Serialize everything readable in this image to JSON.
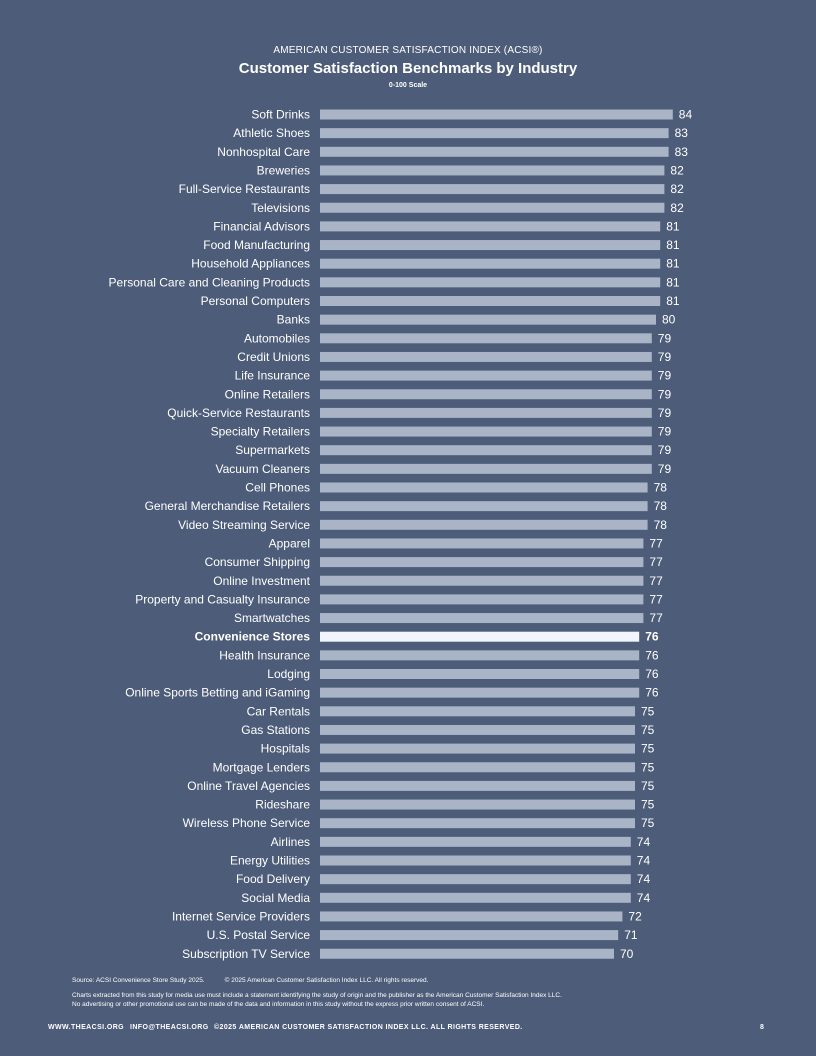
{
  "header": {
    "organization": "AMERICAN CUSTOMER SATISFACTION INDEX (ACSI®)",
    "title": "Customer Satisfaction Benchmarks by Industry",
    "scale": "0-100 Scale"
  },
  "colors": {
    "background": "#4d5c78",
    "bar": "#a9b4c6",
    "highlight_bar": "#f2f5fb",
    "text": "#ffffff"
  },
  "chart_data": {
    "type": "bar",
    "orientation": "horizontal",
    "title": "Customer Satisfaction Benchmarks by Industry",
    "subtitle": "0-100 Scale",
    "highlight": "Convenience Stores",
    "categories": [
      "Soft Drinks",
      "Athletic Shoes",
      "Nonhospital Care",
      "Breweries",
      "Full-Service Restaurants",
      "Televisions",
      "Financial Advisors",
      "Food Manufacturing",
      "Household Appliances",
      "Personal Care and Cleaning Products",
      "Personal Computers",
      "Banks",
      "Automobiles",
      "Credit Unions",
      "Life Insurance",
      "Online Retailers",
      "Quick-Service Restaurants",
      "Specialty Retailers",
      "Supermarkets",
      "Vacuum Cleaners",
      "Cell Phones",
      "General Merchandise Retailers",
      "Video Streaming Service",
      "Apparel",
      "Consumer Shipping",
      "Online Investment",
      "Property and Casualty Insurance",
      "Smartwatches",
      "Convenience Stores",
      "Health Insurance",
      "Lodging",
      "Online Sports Betting and iGaming",
      "Car Rentals",
      "Gas Stations",
      "Hospitals",
      "Mortgage Lenders",
      "Online Travel Agencies",
      "Rideshare",
      "Wireless Phone Service",
      "Airlines",
      "Energy Utilities",
      "Food Delivery",
      "Social Media",
      "Internet Service Providers",
      "U.S. Postal Service",
      "Subscription TV Service"
    ],
    "values": [
      84,
      83,
      83,
      82,
      82,
      82,
      81,
      81,
      81,
      81,
      81,
      80,
      79,
      79,
      79,
      79,
      79,
      79,
      79,
      79,
      78,
      78,
      78,
      77,
      77,
      77,
      77,
      77,
      76,
      76,
      76,
      76,
      75,
      75,
      75,
      75,
      75,
      75,
      75,
      74,
      74,
      74,
      74,
      72,
      71,
      70
    ],
    "xlim": [
      0,
      100
    ],
    "grid": false,
    "legend": "none"
  },
  "footer": {
    "source": "Source: ACSI Convenience Store Study 2025.",
    "copyright": "© 2025 American Customer Satisfaction Index LLC. All rights reserved.",
    "note_line1": "Charts extracted from this study for media use must include a statement identifying the study of origin and the publisher as the American Customer Satisfaction Index LLC.",
    "note_line2": "No advertising or other promotional use can be made of the data and information in this study without the express prior written consent of ACSI."
  },
  "bottom_bar": {
    "website": "WWW.THEACSI.ORG",
    "email": "INFO@THEACSI.ORG",
    "rights": "©2025 AMERICAN CUSTOMER SATISFACTION INDEX LLC. ALL RIGHTS RESERVED.",
    "page_number": "8"
  }
}
